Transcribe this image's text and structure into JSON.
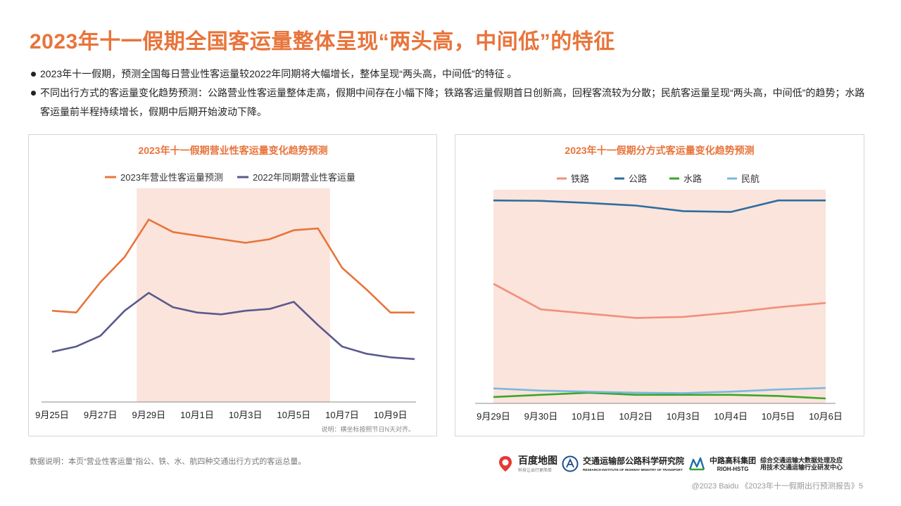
{
  "title": "2023年十一假期全国客运量整体呈现“两头高，中间低”的特征",
  "bullets": [
    "2023年十一假期，预测全国每日营业性客运量较2022年同期将大幅增长，整体呈现“两头高，中间低”的特征 。",
    "不同出行方式的客运量变化趋势预测：公路营业性客运量整体走高，假期中间存在小幅下降；铁路客运量假期首日创新高，回程客流较为分散；民航客运量呈现“两头高，中间低”的趋势；水路客运量前半程持续增长，假期中后期开始波动下降。"
  ],
  "chart_left_note": "说明：横坐标按照节日N天对齐。",
  "footnote": "数据说明：本页“营业性客运量”指公、铁、水、航四种交通出行方式的客运总量。",
  "logos": {
    "baidu_map": "百度地图",
    "baidu_map_sub": "科技让出行更简单",
    "rioh": "交通运输部公路科学研究院",
    "rioh_sub": "RESEARCH INSTITUTE OF HIGHWAY MINISTRY OF TRANSPORT",
    "hstg": "中路高科集团",
    "hstg_sub": "RIOH-HSTG",
    "center_line1": "综合交通运输大数据处理及应",
    "center_line2": "用技术交通运输行业研发中心"
  },
  "copyright": "@2023 Baidu 《2023年十一假期出行预测报告》5",
  "colors": {
    "accent": "#e8743b",
    "series_2023": "#e8743b",
    "series_2022": "#5a5a8e",
    "rail": "#f0907a",
    "road": "#2e6d9e",
    "water": "#3aa62a",
    "air": "#7ab8e0",
    "holiday_band": "#fbe4dc"
  },
  "chart_data": [
    {
      "type": "line",
      "title": "2023年十一假期营业性客运量变化趋势预测",
      "x": [
        "9月25日",
        "9月26日",
        "9月27日",
        "9月28日",
        "9月29日",
        "9月30日",
        "10月1日",
        "10月2日",
        "10月3日",
        "10月4日",
        "10月5日",
        "10月6日",
        "10月7日",
        "10月8日",
        "10月9日",
        "10月10日"
      ],
      "x_tick_labels": [
        "9月25日",
        "9月27日",
        "9月29日",
        "10月1日",
        "10月3日",
        "10月5日",
        "10月7日",
        "10月9日"
      ],
      "highlight_range": [
        "9月29日",
        "10月6日"
      ],
      "series": [
        {
          "name": "2023年营业性客运量预测",
          "values": [
            51,
            50,
            67,
            81,
            102,
            95,
            93,
            91,
            89,
            91,
            96,
            97,
            75,
            63,
            50,
            50
          ]
        },
        {
          "name": "2022年同期营业性客运量",
          "values": [
            28,
            31,
            37,
            51,
            61,
            53,
            50,
            49,
            51,
            52,
            56,
            43,
            31,
            27,
            25,
            24
          ]
        }
      ],
      "ylim": [
        0,
        110
      ],
      "yaxis_visible": false,
      "grid": false,
      "legend": "top"
    },
    {
      "type": "line",
      "title": "2023年十一假期分方式客运量变化趋势预测",
      "x": [
        "9月29日",
        "9月30日",
        "10月1日",
        "10月2日",
        "10月3日",
        "10月4日",
        "10月5日",
        "10月6日"
      ],
      "highlight_range": [
        "9月29日",
        "10月6日"
      ],
      "series": [
        {
          "name": "铁路",
          "values": [
            56,
            44,
            42,
            40,
            40.5,
            42.5,
            45,
            47
          ]
        },
        {
          "name": "公路",
          "values": [
            95,
            94.8,
            93.8,
            92.6,
            90,
            89.6,
            95,
            95
          ]
        },
        {
          "name": "水路",
          "values": [
            3,
            4,
            5,
            4,
            4,
            4,
            3.5,
            2.3
          ]
        },
        {
          "name": "民航",
          "values": [
            7,
            6,
            5.5,
            5,
            4.8,
            5.5,
            6.5,
            7.2
          ]
        }
      ],
      "ylim": [
        0,
        100
      ],
      "yaxis_visible": false,
      "grid": false,
      "legend": "top"
    }
  ]
}
